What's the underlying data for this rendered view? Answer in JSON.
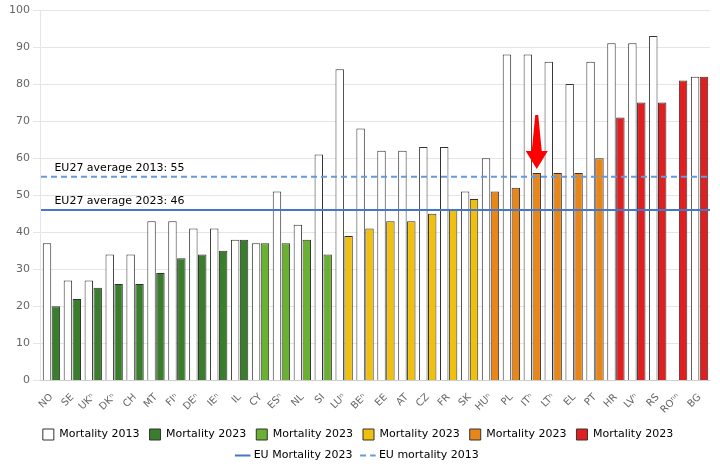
{
  "chart_data": {
    "type": "bar",
    "categories": [
      "NO",
      "SE",
      "UKⁿ",
      "DKⁿ",
      "CH",
      "MT",
      "FIⁿ",
      "DEⁿ",
      "IEⁿ",
      "IL",
      "CY",
      "ESⁿ",
      "NL",
      "SI",
      "LUⁿ",
      "BEⁿ",
      "EE",
      "AT",
      "CZ",
      "FR",
      "SK",
      "HUⁿ",
      "PL",
      "ITⁿ",
      "LTⁿ",
      "EL",
      "PT",
      "HR",
      "LVⁿ",
      "RS",
      "ROⁿⁿ",
      "BG"
    ],
    "series": [
      {
        "name": "Mortality 2013",
        "color": "#ffffff",
        "values": [
          37,
          27,
          27,
          34,
          34,
          43,
          43,
          41,
          41,
          38,
          37,
          51,
          42,
          61,
          84,
          68,
          62,
          62,
          63,
          63,
          51,
          60,
          88,
          88,
          86,
          80,
          86,
          91,
          91,
          93,
          null,
          82
        ]
      },
      {
        "name": "Mortality 2023",
        "colors": [
          "#3a7d2c",
          "#3a7d2c",
          "#3a7d2c",
          "#3a7d2c",
          "#3a7d2c",
          "#3a7d2c",
          "#3a7d2c",
          "#3a7d2c",
          "#3a7d2c",
          "#3a7d2c",
          "#6ab031",
          "#6ab031",
          "#6ab031",
          "#6ab031",
          "#f0c010",
          "#f0c010",
          "#f0c010",
          "#f0c010",
          "#f0c010",
          "#f0c010",
          "#f0c010",
          "#e8861a",
          "#e8861a",
          "#e8861a",
          "#e8861a",
          "#e8861a",
          "#e8861a",
          "#e02020",
          "#e02020",
          "#e02020",
          "#e02020",
          "#e02020"
        ],
        "values": [
          20,
          22,
          25,
          26,
          26,
          29,
          33,
          34,
          35,
          38,
          37,
          37,
          38,
          34,
          39,
          41,
          43,
          43,
          45,
          46,
          49,
          51,
          52,
          56,
          56,
          56,
          60,
          71,
          75,
          75,
          81,
          82
        ]
      },
      {
        "name": "EU Mortality 2023",
        "type": "line",
        "line_style": "solid",
        "color": "#4477cc",
        "value": 46
      },
      {
        "name": "EU mortality 2013",
        "type": "line",
        "line_style": "dashed",
        "color": "#6699dd",
        "value": 55
      }
    ],
    "annotations": [
      {
        "text": "EU27 average 2013: 55",
        "y": 55
      },
      {
        "text": "EU27 average 2023: 46",
        "y": 46
      },
      {
        "category": "ITⁿ",
        "series": "Mortality 2023",
        "marker": "arrow",
        "color": "#ff0000"
      }
    ],
    "ylim": [
      0,
      100
    ],
    "yticks": [
      0,
      10,
      20,
      30,
      40,
      50,
      60,
      70,
      80,
      90,
      100
    ],
    "grid": true
  }
}
